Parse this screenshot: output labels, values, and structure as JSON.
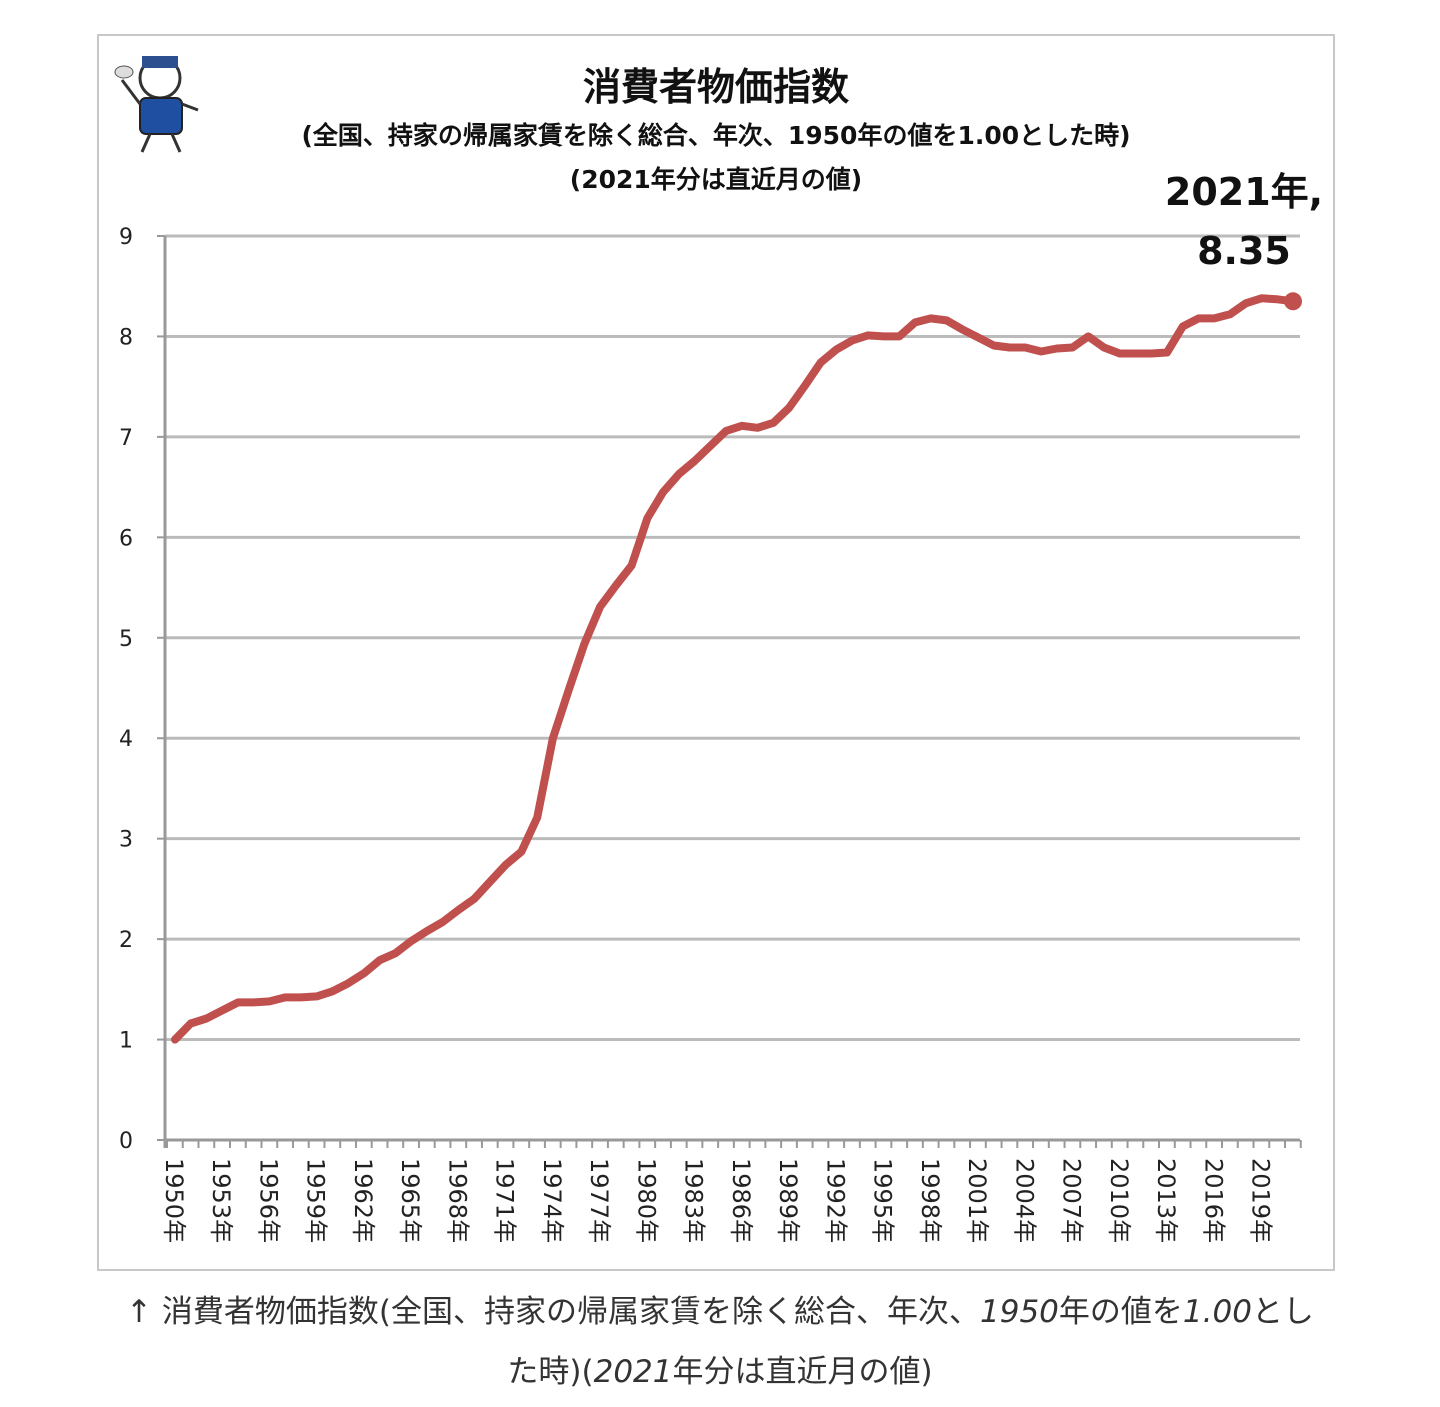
{
  "chart_data": {
    "type": "line",
    "title": "消費者物価指数",
    "subtitle": "(全国、持家の帰属家賃を除く総合、年次、1950年の値を1.00とした時)",
    "subtitle2": "(2021年分は直近月の値)",
    "xlabel": "",
    "ylabel": "",
    "ylim": [
      0,
      9
    ],
    "yticks": [
      0,
      1,
      2,
      3,
      4,
      5,
      6,
      7,
      8,
      9
    ],
    "grid": true,
    "line_color": "#c0504d",
    "x": [
      1950,
      1951,
      1952,
      1953,
      1954,
      1955,
      1956,
      1957,
      1958,
      1959,
      1960,
      1961,
      1962,
      1963,
      1964,
      1965,
      1966,
      1967,
      1968,
      1969,
      1970,
      1971,
      1972,
      1973,
      1974,
      1975,
      1976,
      1977,
      1978,
      1979,
      1980,
      1981,
      1982,
      1983,
      1984,
      1985,
      1986,
      1987,
      1988,
      1989,
      1990,
      1991,
      1992,
      1993,
      1994,
      1995,
      1996,
      1997,
      1998,
      1999,
      2000,
      2001,
      2002,
      2003,
      2004,
      2005,
      2006,
      2007,
      2008,
      2009,
      2010,
      2011,
      2012,
      2013,
      2014,
      2015,
      2016,
      2017,
      2018,
      2019,
      2020,
      2021
    ],
    "xtick_labels": [
      "1950年",
      "1953年",
      "1956年",
      "1959年",
      "1962年",
      "1965年",
      "1968年",
      "1971年",
      "1974年",
      "1977年",
      "1980年",
      "1983年",
      "1986年",
      "1989年",
      "1992年",
      "1995年",
      "1998年",
      "2001年",
      "2004年",
      "2007年",
      "2010年",
      "2013年",
      "2016年",
      "2019年"
    ],
    "series": [
      {
        "values": [
          1.0,
          1.16,
          1.21,
          1.29,
          1.37,
          1.37,
          1.38,
          1.42,
          1.42,
          1.43,
          1.48,
          1.56,
          1.66,
          1.79,
          1.86,
          1.98,
          2.08,
          2.17,
          2.29,
          2.4,
          2.57,
          2.74,
          2.87,
          3.21,
          4.0,
          4.48,
          4.94,
          5.31,
          5.52,
          5.72,
          6.19,
          6.45,
          6.63,
          6.76,
          6.91,
          7.06,
          7.11,
          7.09,
          7.14,
          7.29,
          7.51,
          7.74,
          7.87,
          7.96,
          8.01,
          8.0,
          8.0,
          8.14,
          8.18,
          8.16,
          8.07,
          7.99,
          7.91,
          7.89,
          7.89,
          7.85,
          7.88,
          7.89,
          8.0,
          7.89,
          7.83,
          7.83,
          7.83,
          7.84,
          8.1,
          8.18,
          8.18,
          8.22,
          8.33,
          8.38,
          8.37,
          8.35
        ]
      }
    ],
    "annotation": {
      "line1": "2021年,",
      "line2": "8.35"
    }
  },
  "caption": {
    "arrow": "↑",
    "part1": " 消費者物価指数(全国、持家の帰属家賃を除く総合、年次、",
    "part2": "1950",
    "part3": "年の値を",
    "part4": "1.00",
    "part5": "とし",
    "part6": "た時)(",
    "part7": "2021",
    "part8": "年分は直近月の値)"
  },
  "mascot": {
    "icon": "mascot-character-icon"
  }
}
